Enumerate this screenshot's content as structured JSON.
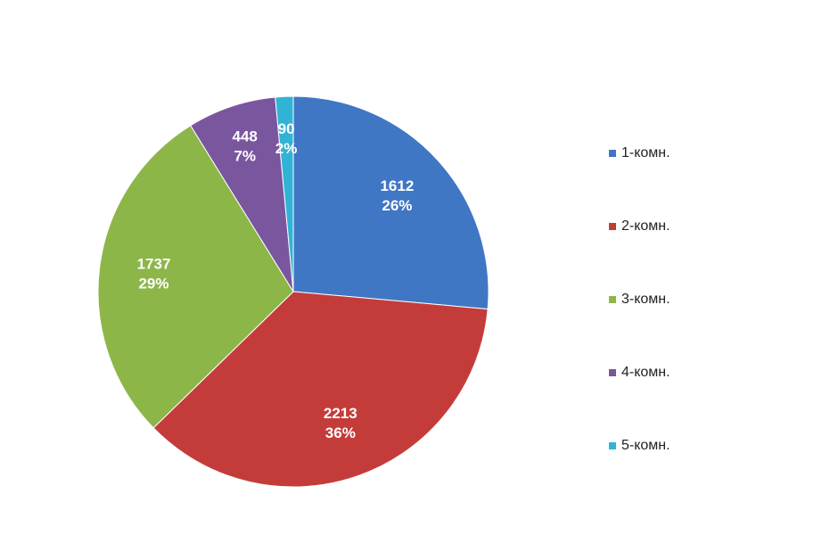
{
  "chart_data": {
    "type": "pie",
    "categories": [
      "1-комн.",
      "2-комн.",
      "3-комн.",
      "4-комн.",
      "5-комн."
    ],
    "values": [
      1612,
      2213,
      1737,
      448,
      90
    ],
    "percent_values": [
      26,
      36,
      29,
      7,
      2
    ],
    "percent_labels": [
      "26%",
      "36%",
      "29%",
      "7%",
      "2%"
    ],
    "colors": [
      "#3f77c4",
      "#c43c3a",
      "#8db649",
      "#7a569f",
      "#31b3d5"
    ],
    "legend": "right"
  }
}
